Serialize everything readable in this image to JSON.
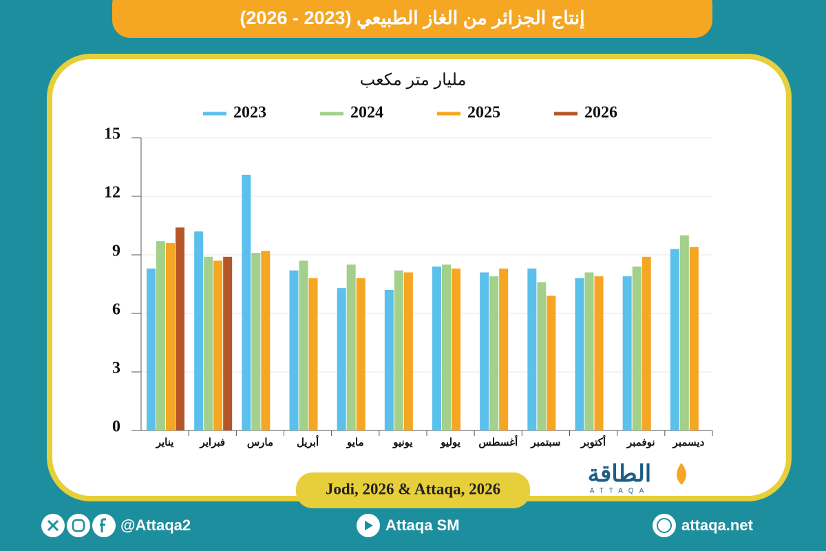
{
  "chart_data": {
    "type": "bar",
    "title": "إنتاج الجزائر من الغاز الطبيعي (2023 - 2026)",
    "subtitle": "مليار متر مكعب",
    "categories": [
      "يناير",
      "فبراير",
      "مارس",
      "أبريل",
      "مايو",
      "يونيو",
      "يوليو",
      "أغسطس",
      "سبتمبر",
      "أكتوبر",
      "نوفمبر",
      "ديسمبر"
    ],
    "series": [
      {
        "name": "2023",
        "color": "#5bc0eb",
        "values": [
          8.3,
          10.2,
          13.1,
          8.2,
          7.3,
          7.2,
          8.4,
          8.1,
          8.3,
          7.8,
          7.9,
          9.3
        ]
      },
      {
        "name": "2024",
        "color": "#a3d08a",
        "values": [
          9.7,
          8.9,
          9.1,
          8.7,
          8.5,
          8.2,
          8.5,
          7.9,
          7.6,
          8.1,
          8.4,
          10.0
        ]
      },
      {
        "name": "2025",
        "color": "#f5a623",
        "values": [
          9.6,
          8.7,
          9.2,
          7.8,
          7.8,
          8.1,
          8.3,
          8.3,
          6.9,
          7.9,
          8.9,
          9.4
        ]
      },
      {
        "name": "2026",
        "color": "#b5562a",
        "values": [
          10.4,
          8.9,
          null,
          null,
          null,
          null,
          null,
          null,
          null,
          null,
          null,
          null
        ]
      }
    ],
    "ylim": [
      0,
      15
    ],
    "yticks": [
      0,
      3,
      6,
      9,
      12,
      15
    ],
    "grid": true,
    "legend": "top"
  },
  "source": "Jodi, 2026 & Attaqa, 2026",
  "logo": {
    "arabic": "الطاقة",
    "latin": "ATTAQA"
  },
  "footer": {
    "social": "@Attaqa2",
    "youtube": "Attaqa SM",
    "website": "attaqa.net"
  }
}
